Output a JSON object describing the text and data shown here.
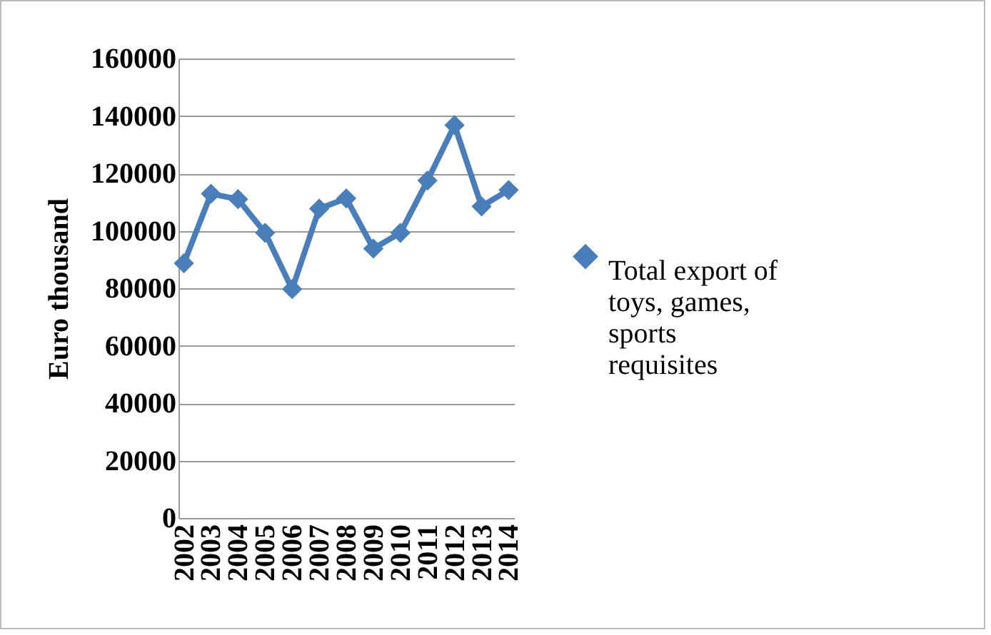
{
  "chart_data": {
    "type": "line",
    "ylabel": "Euro thousand",
    "categories": [
      "2002",
      "2003",
      "2004",
      "2005",
      "2006",
      "2007",
      "2008",
      "2009",
      "2010",
      "2011",
      "2012",
      "2013",
      "2014"
    ],
    "series": [
      {
        "name": "Total export of toys, games, sports requisites",
        "color": "#4a7ebb",
        "values": [
          88700,
          112900,
          111000,
          99300,
          79700,
          107700,
          111300,
          93800,
          99300,
          117500,
          136800,
          108500,
          114200
        ]
      }
    ],
    "ylim": [
      0,
      160000
    ],
    "yticks": [
      0,
      20000,
      40000,
      60000,
      80000,
      100000,
      120000,
      140000,
      160000
    ],
    "grid": "y",
    "legend": "right",
    "marker": "diamond",
    "line_style": "solid"
  }
}
